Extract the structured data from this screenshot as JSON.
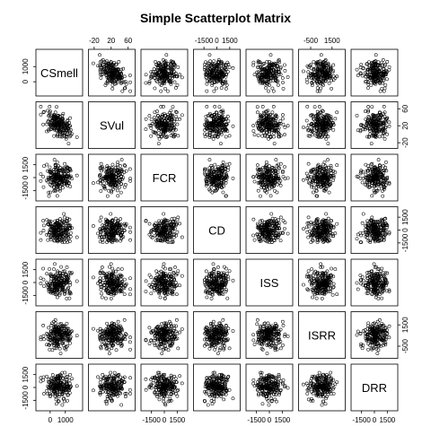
{
  "chart_data": {
    "type": "scatter",
    "title": "Simple Scatterplot Matrix",
    "variables": [
      {
        "name": "CSmell",
        "range": [
          -700,
          1900
        ],
        "ticks": [
          "0",
          "1000"
        ],
        "axis_ticks": [
          0,
          1000
        ]
      },
      {
        "name": "SVul",
        "range": [
          -25,
          68
        ],
        "ticks": [
          "-20",
          "20",
          "60"
        ],
        "axis_ticks": [
          -20,
          20,
          60
        ]
      },
      {
        "name": "FCR",
        "range": [
          -2300,
          2300
        ],
        "ticks": [
          "-1500",
          "0",
          "1500"
        ],
        "axis_ticks": [
          -1500,
          0,
          1500
        ]
      },
      {
        "name": "CD",
        "range": [
          -2300,
          2300
        ],
        "ticks": [
          "-1500",
          "0",
          "1500"
        ],
        "axis_ticks": [
          -1500,
          0,
          1500
        ]
      },
      {
        "name": "ISS",
        "range": [
          -2300,
          2300
        ],
        "ticks": [
          "-1500",
          "0",
          "1500"
        ],
        "axis_ticks": [
          -1500,
          0,
          1500
        ]
      },
      {
        "name": "ISRR",
        "range": [
          -1300,
          2400
        ],
        "ticks": [
          "-500",
          "1500"
        ],
        "axis_ticks": [
          -500,
          1500
        ]
      },
      {
        "name": "DRR",
        "range": [
          -2300,
          2300
        ],
        "ticks": [
          "-1500",
          "0",
          "1500"
        ],
        "axis_ticks": [
          -1500,
          0,
          1500
        ]
      }
    ],
    "point_count": 200,
    "correlations": [
      {
        "pair": [
          "CSmell",
          "SVul"
        ],
        "r": -0.45
      }
    ],
    "marker": "open-circle"
  }
}
